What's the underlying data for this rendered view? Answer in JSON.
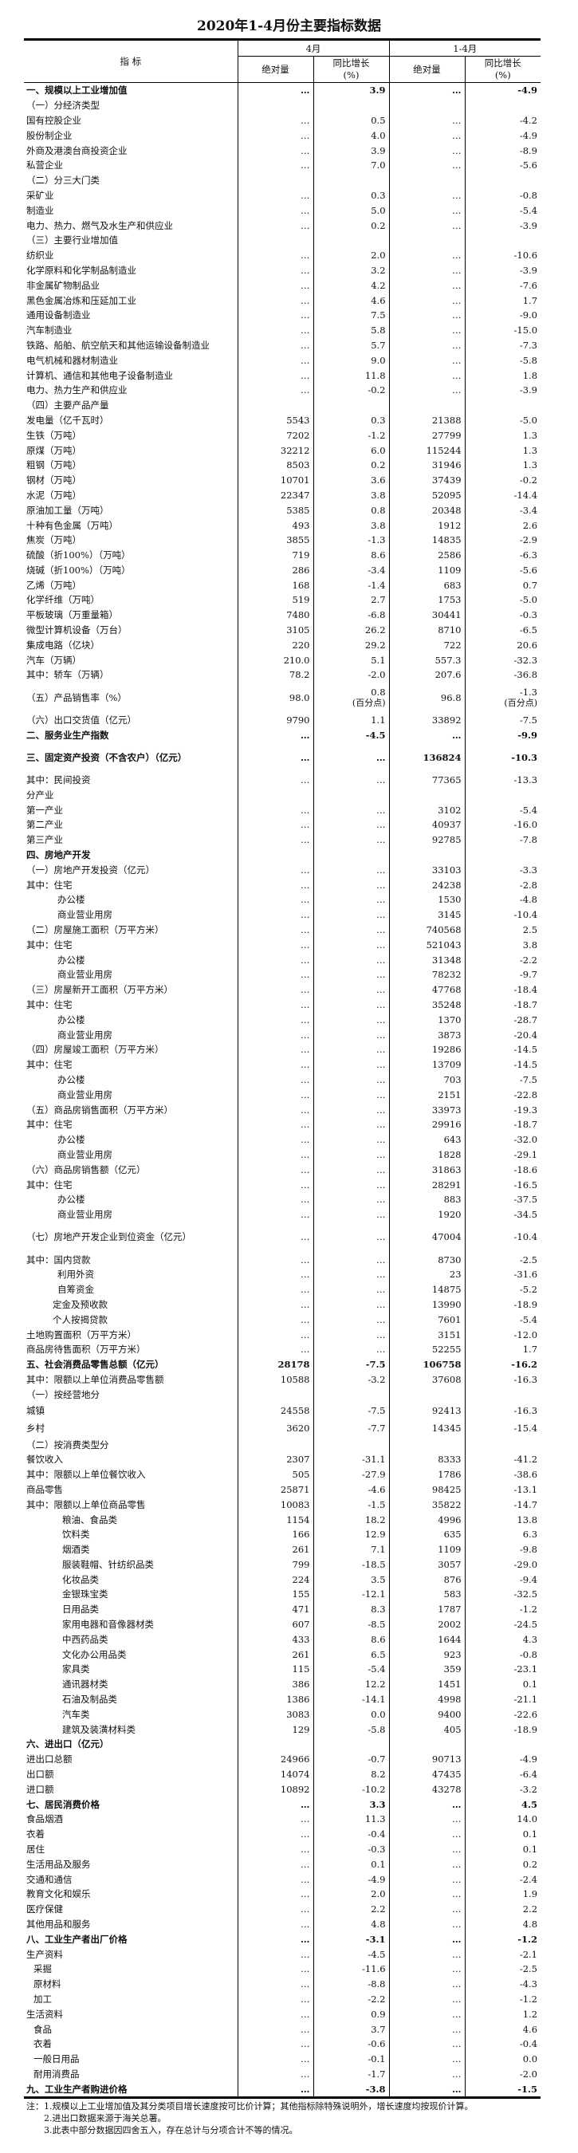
{
  "title": "2020年1-4月份主要指标数据",
  "header": {
    "indicator": "指 标",
    "period_month": "4月",
    "period_ytd": "1-4月",
    "absolute": "绝对量",
    "yoy_growth": "同比增长",
    "yoy_unit": "(%)"
  },
  "rows": [
    {
      "label": "一、规模以上工业增加值",
      "level": 0,
      "section": true,
      "v": [
        "…",
        "3.9",
        "…",
        "-4.9"
      ]
    },
    {
      "label": "（一）分经济类型",
      "level": 0,
      "v": [
        "",
        "",
        "",
        ""
      ]
    },
    {
      "label": "国有控股企业",
      "level": 0,
      "v": [
        "…",
        "0.5",
        "…",
        "-4.2"
      ]
    },
    {
      "label": "股份制企业",
      "level": 0,
      "v": [
        "…",
        "4.0",
        "…",
        "-4.9"
      ]
    },
    {
      "label": "外商及港澳台商投资企业",
      "level": 0,
      "v": [
        "…",
        "3.9",
        "…",
        "-8.9"
      ]
    },
    {
      "label": "私营企业",
      "level": 0,
      "v": [
        "…",
        "7.0",
        "…",
        "-5.6"
      ]
    },
    {
      "label": "（二）分三大门类",
      "level": 0,
      "v": [
        "",
        "",
        "",
        ""
      ]
    },
    {
      "label": "采矿业",
      "level": 0,
      "v": [
        "…",
        "0.3",
        "…",
        "-0.8"
      ]
    },
    {
      "label": "制造业",
      "level": 0,
      "v": [
        "…",
        "5.0",
        "…",
        "-5.4"
      ]
    },
    {
      "label": "电力、热力、燃气及水生产和供应业",
      "level": 0,
      "v": [
        "…",
        "0.2",
        "…",
        "-3.9"
      ]
    },
    {
      "label": "（三）主要行业增加值",
      "level": 0,
      "v": [
        "",
        "",
        "",
        ""
      ]
    },
    {
      "label": "纺织业",
      "level": 0,
      "v": [
        "…",
        "2.0",
        "…",
        "-10.6"
      ]
    },
    {
      "label": "化学原料和化学制品制造业",
      "level": 0,
      "v": [
        "…",
        "3.2",
        "…",
        "-3.9"
      ]
    },
    {
      "label": "非金属矿物制品业",
      "level": 0,
      "v": [
        "…",
        "4.2",
        "…",
        "-7.6"
      ]
    },
    {
      "label": "黑色金属冶炼和压延加工业",
      "level": 0,
      "v": [
        "…",
        "4.6",
        "…",
        "1.7"
      ]
    },
    {
      "label": "通用设备制造业",
      "level": 0,
      "v": [
        "…",
        "7.5",
        "…",
        "-9.0"
      ]
    },
    {
      "label": "汽车制造业",
      "level": 0,
      "v": [
        "…",
        "5.8",
        "…",
        "-15.0"
      ]
    },
    {
      "label": "铁路、船舶、航空航天和其他运输设备制造业",
      "level": 0,
      "v": [
        "…",
        "5.7",
        "…",
        "-7.3"
      ]
    },
    {
      "label": "电气机械和器材制造业",
      "level": 0,
      "v": [
        "…",
        "9.0",
        "…",
        "-5.8"
      ]
    },
    {
      "label": "计算机、通信和其他电子设备制造业",
      "level": 0,
      "v": [
        "…",
        "11.8",
        "…",
        "1.8"
      ]
    },
    {
      "label": "电力、热力生产和供应业",
      "level": 0,
      "v": [
        "…",
        "-0.2",
        "…",
        "-3.9"
      ]
    },
    {
      "label": "（四）主要产品产量",
      "level": 0,
      "v": [
        "",
        "",
        "",
        ""
      ]
    },
    {
      "label": "发电量（亿千瓦时）",
      "level": 0,
      "v": [
        "5543",
        "0.3",
        "21388",
        "-5.0"
      ]
    },
    {
      "label": "生铁（万吨）",
      "level": 0,
      "v": [
        "7202",
        "-1.2",
        "27799",
        "1.3"
      ]
    },
    {
      "label": "原煤（万吨）",
      "level": 0,
      "v": [
        "32212",
        "6.0",
        "115244",
        "1.3"
      ]
    },
    {
      "label": "粗钢（万吨）",
      "level": 0,
      "v": [
        "8503",
        "0.2",
        "31946",
        "1.3"
      ]
    },
    {
      "label": "钢材（万吨）",
      "level": 0,
      "v": [
        "10701",
        "3.6",
        "37439",
        "-0.2"
      ]
    },
    {
      "label": "水泥（万吨）",
      "level": 0,
      "v": [
        "22347",
        "3.8",
        "52095",
        "-14.4"
      ]
    },
    {
      "label": "原油加工量（万吨）",
      "level": 0,
      "v": [
        "5385",
        "0.8",
        "20348",
        "-3.4"
      ]
    },
    {
      "label": "十种有色金属（万吨）",
      "level": 0,
      "v": [
        "493",
        "3.8",
        "1912",
        "2.6"
      ]
    },
    {
      "label": "焦炭（万吨）",
      "level": 0,
      "v": [
        "3855",
        "-1.3",
        "14835",
        "-2.9"
      ]
    },
    {
      "label": "硫酸（折100%）（万吨）",
      "level": 0,
      "v": [
        "719",
        "8.6",
        "2586",
        "-6.3"
      ]
    },
    {
      "label": "烧碱（折100%）（万吨）",
      "level": 0,
      "v": [
        "286",
        "-3.4",
        "1109",
        "-5.6"
      ]
    },
    {
      "label": "乙烯（万吨）",
      "level": 0,
      "v": [
        "168",
        "-1.4",
        "683",
        "0.7"
      ]
    },
    {
      "label": "化学纤维（万吨）",
      "level": 0,
      "v": [
        "519",
        "2.7",
        "1753",
        "-5.0"
      ]
    },
    {
      "label": "平板玻璃（万重量箱）",
      "level": 0,
      "v": [
        "7480",
        "-6.8",
        "30441",
        "-0.3"
      ]
    },
    {
      "label": "微型计算机设备（万台）",
      "level": 0,
      "v": [
        "3105",
        "26.2",
        "8710",
        "-6.5"
      ]
    },
    {
      "label": "集成电路（亿块）",
      "level": 0,
      "v": [
        "220",
        "29.2",
        "722",
        "20.6"
      ]
    },
    {
      "label": "汽车（万辆）",
      "level": 0,
      "v": [
        "210.0",
        "5.1",
        "557.3",
        "-32.3"
      ]
    },
    {
      "label": "其中：轿车（万辆）",
      "level": 0,
      "v": [
        "78.2",
        "-2.0",
        "207.6",
        "-36.8"
      ]
    },
    {
      "label": "（五）产品销售率（%）",
      "level": 0,
      "double": true,
      "v": [
        "98.0",
        "0.8",
        "96.8",
        "-1.3"
      ],
      "unit": [
        "",
        "(百分点)",
        "",
        "(百分点)"
      ]
    },
    {
      "label": "（六）出口交货值（亿元）",
      "level": 0,
      "v": [
        "9790",
        "1.1",
        "33892",
        "-7.5"
      ]
    },
    {
      "label": "二、服务业生产指数",
      "level": 0,
      "section": true,
      "v": [
        "…",
        "-4.5",
        "…",
        "-9.9"
      ]
    },
    {
      "label": "三、固定资产投资（不含农户）（亿元）",
      "level": 0,
      "section": true,
      "double": true,
      "v": [
        "…",
        "…",
        "136824",
        "-10.3"
      ]
    },
    {
      "label": "其中：民间投资",
      "level": 0,
      "v": [
        "…",
        "…",
        "77365",
        "-13.3"
      ]
    },
    {
      "label": "分产业",
      "level": 0,
      "v": [
        "",
        "",
        "",
        ""
      ]
    },
    {
      "label": "第一产业",
      "level": 0,
      "v": [
        "…",
        "…",
        "3102",
        "-5.4"
      ]
    },
    {
      "label": "第二产业",
      "level": 0,
      "v": [
        "…",
        "…",
        "40937",
        "-16.0"
      ]
    },
    {
      "label": "第三产业",
      "level": 0,
      "v": [
        "…",
        "…",
        "92785",
        "-7.8"
      ]
    },
    {
      "label": "四、房地产开发",
      "level": 0,
      "section": true,
      "v": [
        "",
        "",
        "",
        ""
      ]
    },
    {
      "label": "（一）房地产开发投资（亿元）",
      "level": 0,
      "v": [
        "…",
        "…",
        "33103",
        "-3.3"
      ]
    },
    {
      "label": "其中：住宅",
      "level": 0,
      "v": [
        "…",
        "…",
        "24238",
        "-2.8"
      ]
    },
    {
      "label": "办公楼",
      "level": 3,
      "v": [
        "…",
        "…",
        "1530",
        "-4.8"
      ]
    },
    {
      "label": "商业营业用房",
      "level": 3,
      "v": [
        "…",
        "…",
        "3145",
        "-10.4"
      ]
    },
    {
      "label": "（二）房屋施工面积（万平方米）",
      "level": 0,
      "v": [
        "…",
        "…",
        "740568",
        "2.5"
      ]
    },
    {
      "label": "其中：住宅",
      "level": 0,
      "v": [
        "…",
        "…",
        "521043",
        "3.8"
      ]
    },
    {
      "label": "办公楼",
      "level": 3,
      "v": [
        "…",
        "…",
        "31348",
        "-2.2"
      ]
    },
    {
      "label": "商业营业用房",
      "level": 3,
      "v": [
        "…",
        "…",
        "78232",
        "-9.7"
      ]
    },
    {
      "label": "（三）房屋新开工面积（万平方米）",
      "level": 0,
      "v": [
        "…",
        "…",
        "47768",
        "-18.4"
      ]
    },
    {
      "label": "其中：住宅",
      "level": 0,
      "v": [
        "…",
        "…",
        "35248",
        "-18.7"
      ]
    },
    {
      "label": "办公楼",
      "level": 3,
      "v": [
        "…",
        "…",
        "1370",
        "-28.7"
      ]
    },
    {
      "label": "商业营业用房",
      "level": 3,
      "v": [
        "…",
        "…",
        "3873",
        "-20.4"
      ]
    },
    {
      "label": "（四）房屋竣工面积（万平方米）",
      "level": 0,
      "v": [
        "…",
        "…",
        "19286",
        "-14.5"
      ]
    },
    {
      "label": "其中：住宅",
      "level": 0,
      "v": [
        "…",
        "…",
        "13709",
        "-14.5"
      ]
    },
    {
      "label": "办公楼",
      "level": 3,
      "v": [
        "…",
        "…",
        "703",
        "-7.5"
      ]
    },
    {
      "label": "商业营业用房",
      "level": 3,
      "v": [
        "…",
        "…",
        "2151",
        "-22.8"
      ]
    },
    {
      "label": "（五）商品房销售面积（万平方米）",
      "level": 0,
      "v": [
        "…",
        "…",
        "33973",
        "-19.3"
      ]
    },
    {
      "label": "其中：住宅",
      "level": 0,
      "v": [
        "…",
        "…",
        "29916",
        "-18.7"
      ]
    },
    {
      "label": "办公楼",
      "level": 3,
      "v": [
        "…",
        "…",
        "643",
        "-32.0"
      ]
    },
    {
      "label": "商业营业用房",
      "level": 3,
      "v": [
        "…",
        "…",
        "1828",
        "-29.1"
      ]
    },
    {
      "label": "（六）商品房销售额（亿元）",
      "level": 0,
      "v": [
        "…",
        "…",
        "31863",
        "-18.6"
      ]
    },
    {
      "label": "其中：住宅",
      "level": 0,
      "v": [
        "…",
        "…",
        "28291",
        "-16.5"
      ]
    },
    {
      "label": "办公楼",
      "level": 3,
      "v": [
        "…",
        "…",
        "883",
        "-37.5"
      ]
    },
    {
      "label": "商业营业用房",
      "level": 3,
      "v": [
        "…",
        "…",
        "1920",
        "-34.5"
      ]
    },
    {
      "label": "（七）房地产开发企业到位资金（亿元）",
      "level": 0,
      "double": true,
      "v": [
        "…",
        "…",
        "47004",
        "-10.4"
      ]
    },
    {
      "label": "其中：国内贷款",
      "level": 0,
      "v": [
        "…",
        "…",
        "8730",
        "-2.5"
      ]
    },
    {
      "label": "利用外资",
      "level": 3,
      "v": [
        "…",
        "…",
        "23",
        "-31.6"
      ]
    },
    {
      "label": "自筹资金",
      "level": 3,
      "v": [
        "…",
        "…",
        "14875",
        "-5.2"
      ]
    },
    {
      "label": "定金及预收款",
      "level": 2,
      "v": [
        "…",
        "…",
        "13990",
        "-18.9"
      ]
    },
    {
      "label": "个人按揭贷款",
      "level": 2,
      "v": [
        "…",
        "…",
        "7601",
        "-5.4"
      ]
    },
    {
      "label": "土地购置面积（万平方米）",
      "level": 0,
      "v": [
        "…",
        "…",
        "3151",
        "-12.0"
      ]
    },
    {
      "label": "商品房待售面积（万平方米）",
      "level": 0,
      "v": [
        "…",
        "…",
        "52255",
        "1.7"
      ]
    },
    {
      "label": "五、社会消费品零售总额（亿元）",
      "level": 0,
      "section": true,
      "v": [
        "28178",
        "-7.5",
        "106758",
        "-16.2"
      ]
    },
    {
      "label": "其中：限额以上单位消费品零售额",
      "level": 0,
      "v": [
        "10588",
        "-3.2",
        "37608",
        "-16.3"
      ]
    },
    {
      "label": "（一）按经营地分",
      "level": 0,
      "v": [
        "",
        "",
        "",
        ""
      ]
    },
    {
      "label": "城镇",
      "level": 0,
      "tall": true,
      "v": [
        "24558",
        "-7.5",
        "92413",
        "-16.3"
      ]
    },
    {
      "label": "乡村",
      "level": 0,
      "tall": true,
      "v": [
        "3620",
        "-7.7",
        "14345",
        "-15.4"
      ]
    },
    {
      "label": "（二）按消费类型分",
      "level": 0,
      "v": [
        "",
        "",
        "",
        ""
      ]
    },
    {
      "label": "餐饮收入",
      "level": 0,
      "v": [
        "2307",
        "-31.1",
        "8333",
        "-41.2"
      ]
    },
    {
      "label": "其中：限额以上单位餐饮收入",
      "level": 0,
      "v": [
        "505",
        "-27.9",
        "1786",
        "-38.6"
      ]
    },
    {
      "label": "商品零售",
      "level": 0,
      "v": [
        "25871",
        "-4.6",
        "98425",
        "-13.1"
      ]
    },
    {
      "label": "其中：限额以上单位商品零售",
      "level": 0,
      "v": [
        "10083",
        "-1.5",
        "35822",
        "-14.7"
      ]
    },
    {
      "label": "粮油、食品类",
      "level": 4,
      "v": [
        "1154",
        "18.2",
        "4996",
        "13.8"
      ]
    },
    {
      "label": "饮料类",
      "level": 4,
      "v": [
        "166",
        "12.9",
        "635",
        "6.3"
      ]
    },
    {
      "label": "烟酒类",
      "level": 4,
      "v": [
        "261",
        "7.1",
        "1109",
        "-9.8"
      ]
    },
    {
      "label": "服装鞋帽、针纺织品类",
      "level": 4,
      "v": [
        "799",
        "-18.5",
        "3057",
        "-29.0"
      ]
    },
    {
      "label": "化妆品类",
      "level": 4,
      "v": [
        "224",
        "3.5",
        "876",
        "-9.4"
      ]
    },
    {
      "label": "金银珠宝类",
      "level": 4,
      "v": [
        "155",
        "-12.1",
        "583",
        "-32.5"
      ]
    },
    {
      "label": "日用品类",
      "level": 4,
      "v": [
        "471",
        "8.3",
        "1787",
        "-1.2"
      ]
    },
    {
      "label": "家用电器和音像器材类",
      "level": 4,
      "v": [
        "607",
        "-8.5",
        "2002",
        "-24.5"
      ]
    },
    {
      "label": "中西药品类",
      "level": 4,
      "v": [
        "433",
        "8.6",
        "1644",
        "4.3"
      ]
    },
    {
      "label": "文化办公用品类",
      "level": 4,
      "v": [
        "261",
        "6.5",
        "923",
        "-0.8"
      ]
    },
    {
      "label": "家具类",
      "level": 4,
      "v": [
        "115",
        "-5.4",
        "359",
        "-23.1"
      ]
    },
    {
      "label": "通讯器材类",
      "level": 4,
      "v": [
        "386",
        "12.2",
        "1451",
        "0.1"
      ]
    },
    {
      "label": "石油及制品类",
      "level": 4,
      "v": [
        "1386",
        "-14.1",
        "4998",
        "-21.1"
      ]
    },
    {
      "label": "汽车类",
      "level": 4,
      "v": [
        "3083",
        "0.0",
        "9400",
        "-22.6"
      ]
    },
    {
      "label": "建筑及装潢材料类",
      "level": 4,
      "v": [
        "129",
        "-5.8",
        "405",
        "-18.9"
      ]
    },
    {
      "label": "六、进出口（亿元）",
      "level": 0,
      "section": true,
      "v": [
        "",
        "",
        "",
        ""
      ]
    },
    {
      "label": "进出口总额",
      "level": 0,
      "v": [
        "24966",
        "-0.7",
        "90713",
        "-4.9"
      ]
    },
    {
      "label": "出口额",
      "level": 0,
      "v": [
        "14074",
        "8.2",
        "47435",
        "-6.4"
      ]
    },
    {
      "label": "进口额",
      "level": 0,
      "v": [
        "10892",
        "-10.2",
        "43278",
        "-3.2"
      ]
    },
    {
      "label": "七、居民消费价格",
      "level": 0,
      "section": true,
      "v": [
        "…",
        "3.3",
        "…",
        "4.5"
      ]
    },
    {
      "label": "食品烟酒",
      "level": 0,
      "v": [
        "…",
        "11.3",
        "…",
        "14.0"
      ]
    },
    {
      "label": "衣着",
      "level": 0,
      "v": [
        "…",
        "-0.4",
        "…",
        "0.1"
      ]
    },
    {
      "label": "居住",
      "level": 0,
      "v": [
        "…",
        "-0.3",
        "…",
        "0.1"
      ]
    },
    {
      "label": "生活用品及服务",
      "level": 0,
      "v": [
        "…",
        "0.1",
        "…",
        "0.2"
      ]
    },
    {
      "label": "交通和通信",
      "level": 0,
      "v": [
        "…",
        "-4.9",
        "…",
        "-2.4"
      ]
    },
    {
      "label": "教育文化和娱乐",
      "level": 0,
      "v": [
        "…",
        "2.0",
        "…",
        "1.9"
      ]
    },
    {
      "label": "医疗保健",
      "level": 0,
      "v": [
        "…",
        "2.2",
        "…",
        "2.2"
      ]
    },
    {
      "label": "其他用品和服务",
      "level": 0,
      "v": [
        "…",
        "4.8",
        "…",
        "4.8"
      ]
    },
    {
      "label": "八、工业生产者出厂价格",
      "level": 0,
      "section": true,
      "v": [
        "…",
        "-3.1",
        "…",
        "-1.2"
      ]
    },
    {
      "label": "生产资料",
      "level": 0,
      "v": [
        "…",
        "-4.5",
        "…",
        "-2.1"
      ]
    },
    {
      "label": "采掘",
      "level": 1,
      "v": [
        "…",
        "-11.6",
        "…",
        "-2.5"
      ]
    },
    {
      "label": "原材料",
      "level": 1,
      "v": [
        "…",
        "-8.8",
        "…",
        "-4.3"
      ]
    },
    {
      "label": "加工",
      "level": 1,
      "v": [
        "…",
        "-2.2",
        "…",
        "-1.2"
      ]
    },
    {
      "label": "生活资料",
      "level": 0,
      "v": [
        "…",
        "0.9",
        "…",
        "1.2"
      ]
    },
    {
      "label": "食品",
      "level": 1,
      "v": [
        "…",
        "3.7",
        "…",
        "4.6"
      ]
    },
    {
      "label": "衣着",
      "level": 1,
      "v": [
        "…",
        "-0.6",
        "…",
        "-0.4"
      ]
    },
    {
      "label": "一般日用品",
      "level": 1,
      "v": [
        "…",
        "-0.1",
        "…",
        "0.0"
      ]
    },
    {
      "label": "耐用消费品",
      "level": 1,
      "v": [
        "…",
        "-1.7",
        "…",
        "-2.0"
      ]
    },
    {
      "label": "九、工业生产者购进价格",
      "level": 0,
      "section": true,
      "v": [
        "…",
        "-3.8",
        "…",
        "-1.5"
      ]
    }
  ],
  "notes": [
    "注：1.规模以上工业增加值及其分类项目增长速度按可比价计算；其他指标除特殊说明外，增长速度均按现价计算。",
    "2.进出口数据来源于海关总署。",
    "3.此表中部分数据因四舍五入，存在总计与分项合计不等的情况。"
  ]
}
